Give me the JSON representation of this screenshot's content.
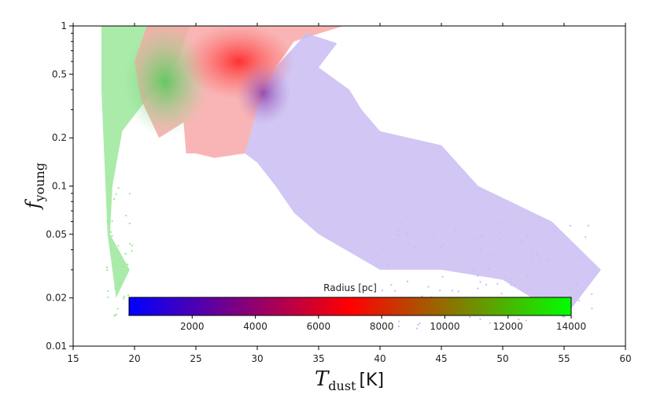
{
  "chart_data": {
    "type": "heatmap",
    "xlabel": "T_dust [K]",
    "xlabel_parts": {
      "symbol": "T",
      "subscript": "dust",
      "unit": "[K]"
    },
    "ylabel": "f_young",
    "ylabel_parts": {
      "symbol": "f",
      "subscript": "young"
    },
    "xlim": [
      15,
      60
    ],
    "ylim": [
      0.01,
      1
    ],
    "yscale": "log",
    "grid": false,
    "x_ticks": [
      15,
      20,
      25,
      30,
      35,
      40,
      45,
      50,
      55,
      60
    ],
    "x_tick_labels": [
      "15",
      "20",
      "25",
      "30",
      "35",
      "40",
      "45",
      "50",
      "55",
      "60"
    ],
    "y_ticks": [
      0.01,
      0.02,
      0.05,
      0.1,
      0.2,
      0.5,
      1
    ],
    "y_tick_labels": [
      "0.01",
      "0.02",
      "0.05",
      "0.1",
      "0.2",
      "0.5",
      "1"
    ],
    "colorbar": {
      "label": "Radius [pc]",
      "orientation": "horizontal",
      "placement": "inset-bottom",
      "range": [
        0,
        14000
      ],
      "ticks": [
        2000,
        4000,
        6000,
        8000,
        10000,
        12000,
        14000
      ],
      "tick_labels": [
        "2000",
        "4000",
        "6000",
        "8000",
        "10000",
        "12000",
        "14000"
      ],
      "colors": [
        "#0000ff",
        "#ff0000",
        "#00ff00"
      ]
    },
    "regions": [
      {
        "name": "outer (green)",
        "radius": 13000,
        "color": "#9be89b",
        "polygon": [
          [
            17.3,
            1.0
          ],
          [
            24.5,
            1.0
          ],
          [
            23.5,
            0.6
          ],
          [
            21,
            0.35
          ],
          [
            19,
            0.22
          ],
          [
            18.2,
            0.1
          ],
          [
            18,
            0.05
          ],
          [
            19.6,
            0.03
          ],
          [
            18.5,
            0.02
          ],
          [
            17.8,
            0.05
          ],
          [
            17.3,
            0.4
          ]
        ]
      },
      {
        "name": "middle (red)",
        "radius": 7000,
        "color": "#f8a8a8",
        "polygon": [
          [
            21,
            1.0
          ],
          [
            37,
            1.0
          ],
          [
            33,
            0.8
          ],
          [
            31.5,
            0.55
          ],
          [
            30,
            0.3
          ],
          [
            29,
            0.16
          ],
          [
            26.5,
            0.15
          ],
          [
            25,
            0.16
          ],
          [
            24.2,
            0.16
          ],
          [
            24,
            0.25
          ],
          [
            22,
            0.2
          ],
          [
            20.5,
            0.35
          ],
          [
            20,
            0.6
          ]
        ]
      },
      {
        "name": "inner (lavender)",
        "radius": 3500,
        "color": "#c9bcf2",
        "polygon": [
          [
            34,
            0.9
          ],
          [
            36.5,
            0.78
          ],
          [
            35,
            0.55
          ],
          [
            37.5,
            0.4
          ],
          [
            38.5,
            0.3
          ],
          [
            40,
            0.22
          ],
          [
            45,
            0.18
          ],
          [
            48,
            0.1
          ],
          [
            54,
            0.06
          ],
          [
            58,
            0.03
          ],
          [
            55,
            0.015
          ],
          [
            50,
            0.026
          ],
          [
            45,
            0.03
          ],
          [
            40,
            0.03
          ],
          [
            37.2,
            0.04
          ],
          [
            35,
            0.05
          ],
          [
            33,
            0.068
          ],
          [
            31.5,
            0.1
          ],
          [
            30,
            0.14
          ],
          [
            29,
            0.16
          ],
          [
            30,
            0.3
          ],
          [
            31.5,
            0.55
          ]
        ]
      }
    ]
  }
}
